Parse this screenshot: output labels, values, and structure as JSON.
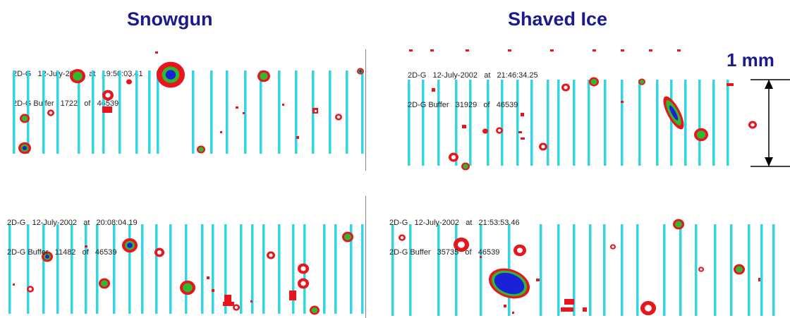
{
  "columns": {
    "left_title": "Snowgun",
    "right_title": "Shaved Ice"
  },
  "scale": {
    "label": "1 mm"
  },
  "panels": [
    {
      "id": "p1",
      "line1": "2D-G   12-July-2002   at   19:50:03.41",
      "line2": "2D-G Buffer   1722   of   46539"
    },
    {
      "id": "p2",
      "line1": "2D-G   12-July-2002   at   21:46:34.25",
      "line2": "2D-G Buffer   31929   of   46539"
    },
    {
      "id": "p3",
      "line1": "2D-G   12-July-2002   at   20:08:04.19",
      "line2": "2D-G Buffer   11482   of   46539"
    },
    {
      "id": "p4",
      "line1": "2D-G   12-July-2002   at   21:53:53.46",
      "line2": "2D-G Buffer   35735   of   46539"
    }
  ],
  "colors": {
    "title": "#1a1a8c",
    "bars": "#33d6e0",
    "outer": "#e8151c",
    "middle": "#2fb830",
    "core": "#1a22d8"
  }
}
